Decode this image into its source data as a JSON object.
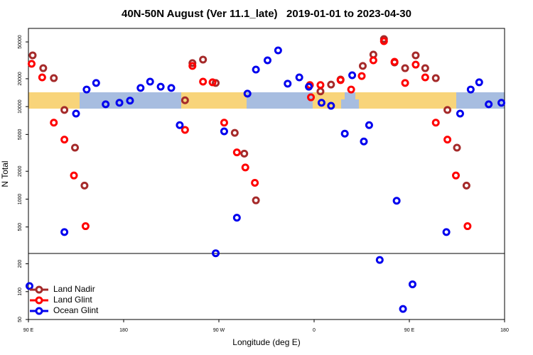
{
  "chart_data": {
    "type": "scatter",
    "title": "40N-50N August (Ver 11.1_late)   2019-01-01 to 2023-04-30",
    "x_label": "Longitude (deg E)",
    "y_label": "N Total",
    "log_y": true,
    "legend": "bottom-left",
    "xlim": [
      90,
      540
    ],
    "xticks": [
      {
        "value": 90,
        "label": "90 E"
      },
      180,
      {
        "value": 270,
        "label": "90 W"
      },
      {
        "value": 360,
        "label": "0"
      },
      {
        "value": 450,
        "label": "90 E"
      },
      {
        "value": 540,
        "label": "180"
      }
    ],
    "ylim": [
      50,
      70000
    ],
    "yticks": [
      50,
      100,
      200,
      500,
      1000,
      2000,
      5000,
      10000,
      20000,
      50000
    ],
    "series": [
      {
        "name": "Land Nadir",
        "color": "#a52a2a",
        "x": [
          94,
          104,
          114,
          124,
          134,
          143,
          238,
          245,
          255,
          267,
          285,
          294,
          305,
          366,
          376,
          385,
          406,
          416,
          426,
          436,
          446,
          456,
          465,
          475,
          486,
          495,
          504
        ],
        "values": [
          35800,
          26000,
          20300,
          9200,
          3600,
          1400,
          11700,
          29500,
          32200,
          18000,
          5200,
          3100,
          970,
          14600,
          17300,
          19600,
          27500,
          36500,
          53700,
          30000,
          26000,
          35800,
          26000,
          20300,
          9200,
          3600,
          1400
        ]
      },
      {
        "name": "Land Glint",
        "color": "#ff0000",
        "x": [
          93,
          103,
          114,
          124,
          133,
          144,
          238,
          245,
          255,
          264,
          275,
          287,
          295,
          304,
          356,
          357,
          366,
          385,
          395,
          405,
          416,
          426,
          436,
          446,
          456,
          465,
          475,
          486,
          494,
          505
        ],
        "values": [
          29000,
          20700,
          6700,
          4400,
          1800,
          510,
          5600,
          27500,
          18600,
          18300,
          6700,
          3200,
          2200,
          1500,
          17100,
          12600,
          17100,
          19300,
          15300,
          21400,
          31600,
          50900,
          30500,
          18000,
          28400,
          20700,
          6700,
          4400,
          1800,
          510
        ]
      },
      {
        "name": "Ocean Glint",
        "color": "#0000ee",
        "x": [
          91,
          124,
          135,
          145,
          154,
          163,
          176,
          186,
          196,
          205,
          215,
          225,
          233,
          267,
          275,
          287,
          297,
          305,
          316,
          326,
          335,
          346,
          355,
          367,
          376,
          389,
          396,
          407,
          412,
          422,
          438,
          444,
          453,
          485,
          498,
          508,
          516,
          525,
          537
        ],
        "values": [
          115,
          440,
          8400,
          15300,
          18000,
          10600,
          11000,
          11600,
          15900,
          18600,
          16400,
          15900,
          6300,
          260,
          5400,
          630,
          13800,
          25100,
          31600,
          40500,
          17700,
          20700,
          16400,
          11000,
          10200,
          5100,
          21800,
          4200,
          6300,
          220,
          960,
          65,
          120,
          440,
          8400,
          15300,
          18300,
          10600,
          11000
        ]
      }
    ]
  }
}
